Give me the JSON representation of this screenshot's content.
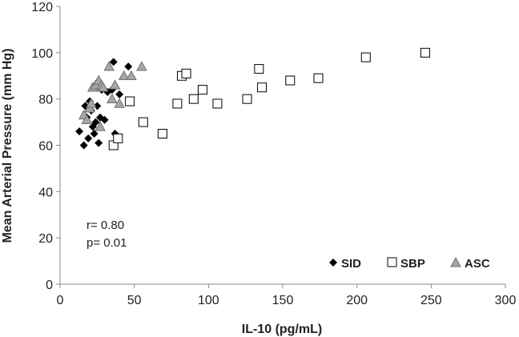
{
  "chart_data": {
    "type": "scatter",
    "xlabel": "IL-10 (pg/mL)",
    "ylabel": "Mean Arterial Pressure (mm Hg)",
    "xlim": [
      0,
      300
    ],
    "ylim": [
      0,
      120
    ],
    "xticks": [
      0,
      50,
      100,
      150,
      200,
      250,
      300
    ],
    "yticks": [
      0,
      20,
      40,
      60,
      80,
      100,
      120
    ],
    "grid": false,
    "legend_position": "bottom-right",
    "annotations": [
      "r= 0.80",
      "p= 0.01"
    ],
    "series": [
      {
        "name": "SID",
        "marker": "diamond",
        "color": "#000000",
        "points": [
          [
            13,
            66
          ],
          [
            16,
            60
          ],
          [
            17,
            77
          ],
          [
            18,
            72
          ],
          [
            19,
            63
          ],
          [
            20,
            79
          ],
          [
            21,
            75
          ],
          [
            22,
            68
          ],
          [
            23,
            65
          ],
          [
            24,
            70
          ],
          [
            25,
            77
          ],
          [
            26,
            61
          ],
          [
            27,
            72
          ],
          [
            28,
            84
          ],
          [
            30,
            71
          ],
          [
            32,
            83
          ],
          [
            35,
            84
          ],
          [
            36,
            96
          ],
          [
            37,
            65
          ],
          [
            40,
            82
          ],
          [
            46,
            94
          ]
        ]
      },
      {
        "name": "SBP",
        "marker": "square",
        "color": "#ffffff",
        "points": [
          [
            36,
            60
          ],
          [
            39,
            63
          ],
          [
            47,
            79
          ],
          [
            56,
            70
          ],
          [
            69,
            65
          ],
          [
            79,
            78
          ],
          [
            82,
            90
          ],
          [
            85,
            91
          ],
          [
            90,
            80
          ],
          [
            96,
            84
          ],
          [
            106,
            78
          ],
          [
            126,
            80
          ],
          [
            134,
            93
          ],
          [
            136,
            85
          ],
          [
            155,
            88
          ],
          [
            174,
            89
          ],
          [
            206,
            98
          ],
          [
            246,
            100
          ]
        ]
      },
      {
        "name": "ASC",
        "marker": "triangle",
        "color": "#a6a6a6",
        "points": [
          [
            16,
            73
          ],
          [
            18,
            71
          ],
          [
            20,
            76
          ],
          [
            21,
            78
          ],
          [
            22,
            85
          ],
          [
            24,
            86
          ],
          [
            26,
            88
          ],
          [
            27,
            68
          ],
          [
            28,
            86
          ],
          [
            29,
            85
          ],
          [
            33,
            94
          ],
          [
            35,
            80
          ],
          [
            37,
            86
          ],
          [
            40,
            78
          ],
          [
            43,
            90
          ],
          [
            48,
            90
          ],
          [
            55,
            94
          ]
        ]
      }
    ]
  }
}
